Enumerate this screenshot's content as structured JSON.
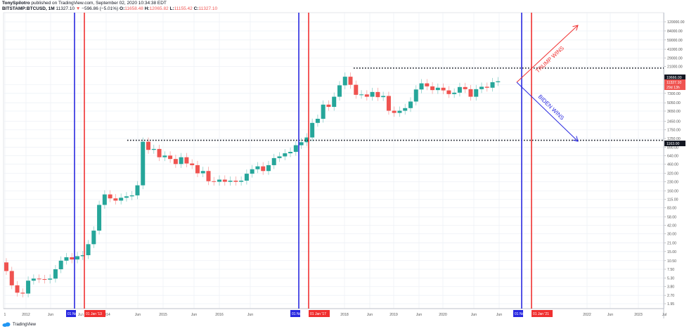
{
  "header": {
    "publisher": "TonySpilotro",
    "published_text": "published on TradingView.com, September 02, 2020 10:34:38 EDT",
    "symbol": "BITSTAMP:BTCUSD, 1M",
    "last": "11327.10",
    "change_arrow": "▼",
    "change": "−596.86 (−5.01%)",
    "o_label": "O:",
    "o": "11658.48",
    "h_label": "H:",
    "h": "12065.82",
    "l_label": "L:",
    "l": "11155.42",
    "c_label": "C:",
    "c": "11327.10"
  },
  "footer": {
    "brand": "TradingView"
  },
  "colors": {
    "up": "#26a69a",
    "down": "#ef5350",
    "blue_line": "#2828e0",
    "red_line": "#f03030",
    "grid": "#eef1f6"
  },
  "chart_data": {
    "type": "candlestick",
    "title": "BITSTAMP:BTCUSD, 1M",
    "yscale": "log",
    "y_ticks": [
      "120000.00",
      "84000.00",
      "59000.00",
      "41000.00",
      "29000.00",
      "21000.00",
      "10300.00",
      "7300.00",
      "5050.00",
      "3650.00",
      "2450.00",
      "1750.00",
      "1250.00",
      "890.00",
      "640.00",
      "460.00",
      "320.00",
      "230.00",
      "160.00",
      "115.00",
      "83.00",
      "58.00",
      "42.00",
      "30.00",
      "21.00",
      "15.00",
      "10.50",
      "7.50",
      "5.30",
      "3.80",
      "2.70",
      "1.95"
    ],
    "x_ticks": [
      "1",
      "2012",
      "Jun",
      "2014",
      "Jun",
      "2015",
      "Jun",
      "2016",
      "Jun",
      "2018",
      "Jun",
      "2019",
      "Jun",
      "2020",
      "Jun",
      "2022",
      "Jun",
      "2023",
      "Jul"
    ],
    "x_markers": [
      {
        "label": "01 Nov '12",
        "color": "#2828e0"
      },
      {
        "label": "01 Jan '13",
        "color": "#f03030"
      },
      {
        "label": "01 Nov '16",
        "color": "#2828e0"
      },
      {
        "label": "01 Jan '17",
        "color": "#f03030"
      },
      {
        "label": "01 Nov '20",
        "color": "#2828e0"
      },
      {
        "label": "01 Jan '21",
        "color": "#f03030"
      }
    ],
    "price_labels": [
      {
        "text": "19666.00",
        "bg": "#131722"
      },
      {
        "text": "11327.10",
        "bg": "#ef5350"
      },
      {
        "text": "29d 13h",
        "bg": "#ef5350"
      },
      {
        "text": "1163.00",
        "bg": "#131722"
      }
    ],
    "horizontal_levels": [
      19666,
      1163
    ],
    "annotations": [
      {
        "text": "TRUMP WINS",
        "color": "#f03030",
        "direction": "up"
      },
      {
        "text": "BIDEN WINS",
        "color": "#2828e0",
        "direction": "down"
      }
    ],
    "candles_approx_close": [
      7,
      4,
      3,
      2.9,
      4.8,
      5.2,
      5.1,
      5.0,
      5.2,
      7.5,
      10.5,
      12,
      11,
      12.5,
      13,
      20,
      34,
      93,
      140,
      120,
      110,
      123,
      130,
      135,
      200,
      1100,
      800,
      830,
      600,
      640,
      560,
      460,
      600,
      470,
      440,
      320,
      350,
      235,
      230,
      250,
      230,
      240,
      230,
      240,
      315,
      375,
      420,
      350,
      440,
      580,
      620,
      700,
      740,
      960,
      1080,
      1300,
      2300,
      2700,
      4700,
      4300,
      6400,
      10000,
      14000,
      10200,
      6900,
      7000,
      6400,
      7700,
      6300,
      6600,
      3700,
      3400,
      3700,
      4100,
      5300,
      8500,
      10800,
      9600,
      8300,
      9100,
      8200,
      7100,
      7500,
      9350,
      8600,
      6400,
      8600,
      9450,
      9100,
      11300,
      11700
    ]
  }
}
